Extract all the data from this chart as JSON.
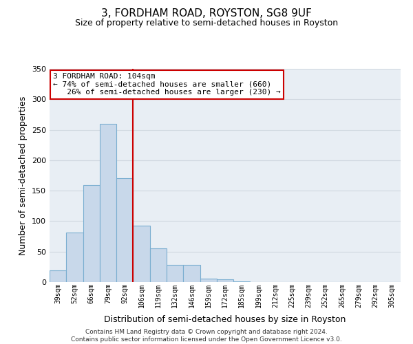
{
  "title": "3, FORDHAM ROAD, ROYSTON, SG8 9UF",
  "subtitle": "Size of property relative to semi-detached houses in Royston",
  "xlabel": "Distribution of semi-detached houses by size in Royston",
  "ylabel": "Number of semi-detached properties",
  "categories": [
    "39sqm",
    "52sqm",
    "66sqm",
    "79sqm",
    "92sqm",
    "106sqm",
    "119sqm",
    "132sqm",
    "146sqm",
    "159sqm",
    "172sqm",
    "185sqm",
    "199sqm",
    "212sqm",
    "225sqm",
    "239sqm",
    "252sqm",
    "265sqm",
    "279sqm",
    "292sqm",
    "305sqm"
  ],
  "bar_values": [
    19,
    81,
    159,
    260,
    170,
    93,
    55,
    28,
    28,
    6,
    5,
    1,
    0,
    0,
    0,
    0,
    0,
    0,
    0,
    0,
    0
  ],
  "bar_color": "#c8d8ea",
  "bar_edge_color": "#7aaed0",
  "ylim": [
    0,
    350
  ],
  "yticks": [
    0,
    50,
    100,
    150,
    200,
    250,
    300,
    350
  ],
  "vline_color": "#cc0000",
  "annotation_line1": "3 FORDHAM ROAD: 104sqm",
  "annotation_line2": "← 74% of semi-detached houses are smaller (660)",
  "annotation_line3": "   26% of semi-detached houses are larger (230) →",
  "annotation_box_color": "#ffffff",
  "annotation_box_edge": "#cc0000",
  "footer": "Contains HM Land Registry data © Crown copyright and database right 2024.\nContains public sector information licensed under the Open Government Licence v3.0.",
  "background_color": "#ffffff",
  "plot_bg_color": "#ffffff",
  "grid_color": "#d0d8e0",
  "outer_bg_color": "#e8eef4"
}
